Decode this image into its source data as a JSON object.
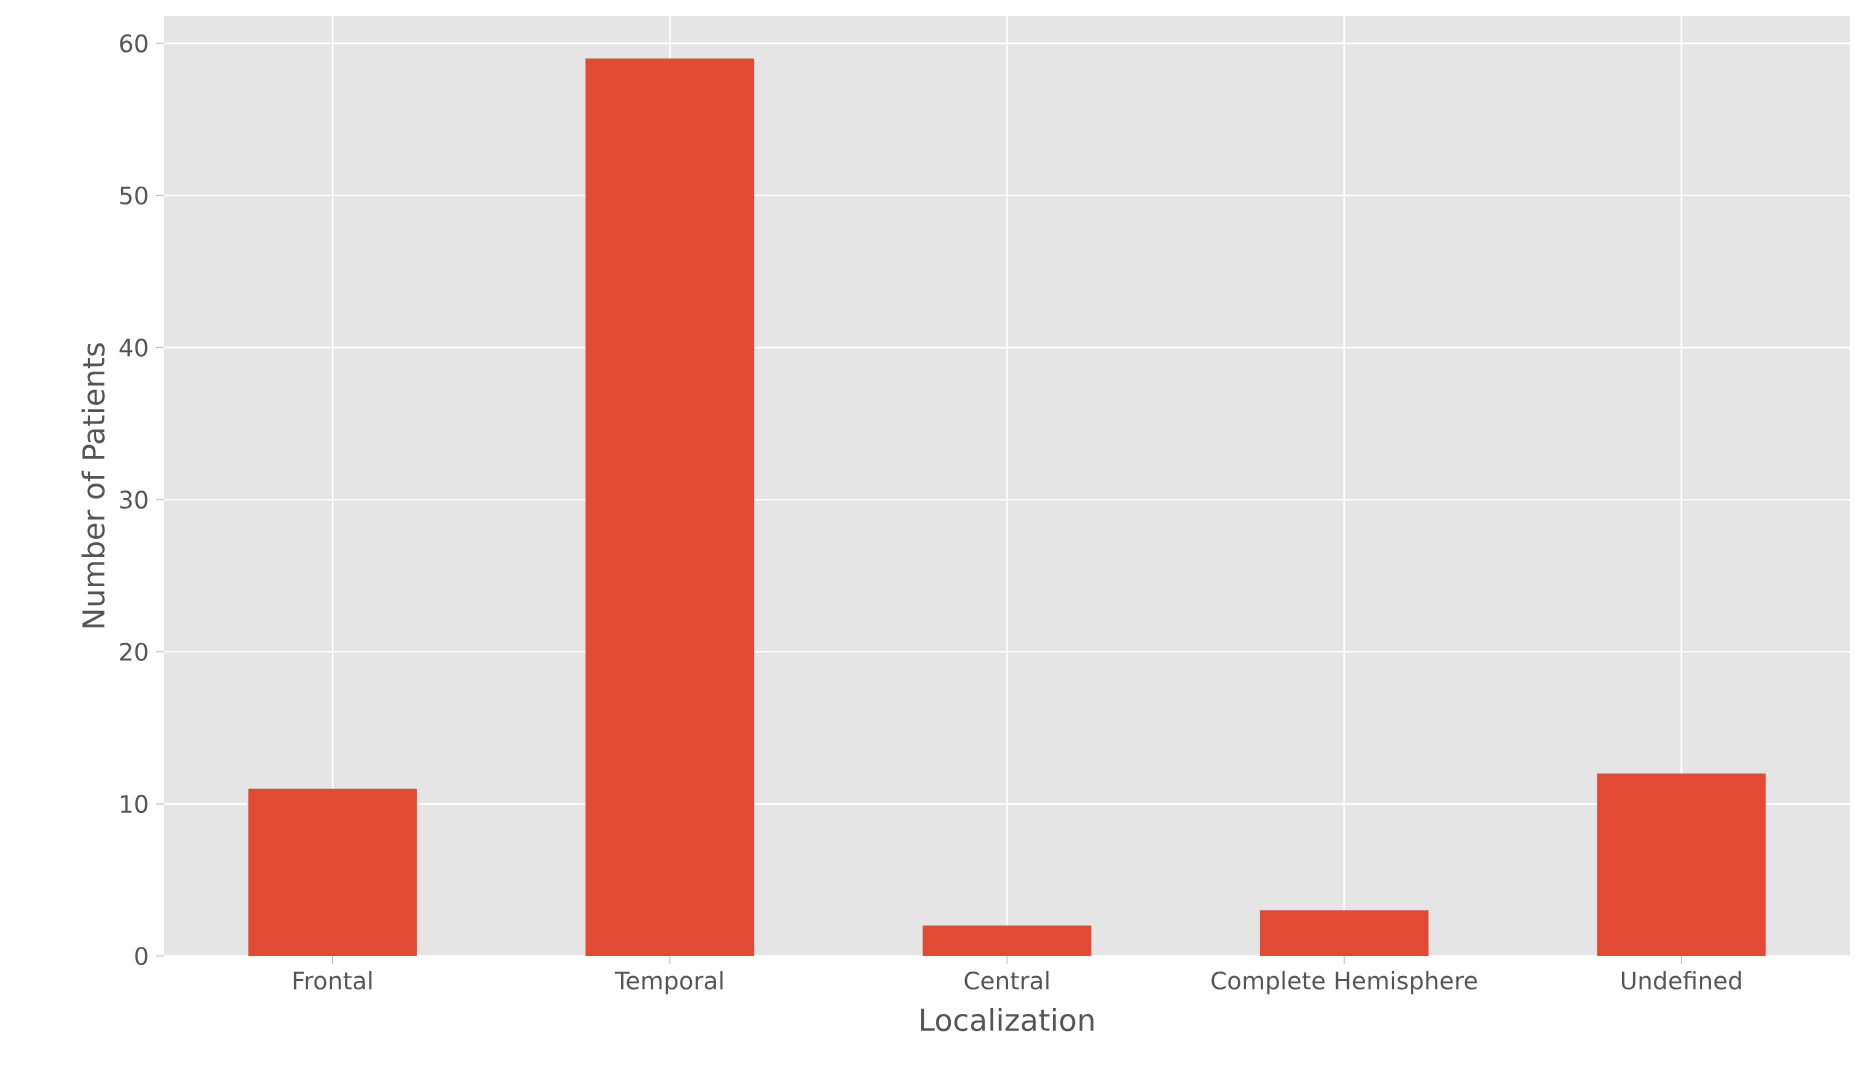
{
  "chart_data": {
    "type": "bar",
    "xlabel": "Localization",
    "ylabel": "Number of Patients",
    "categories": [
      "Frontal",
      "Temporal",
      "Central",
      "Complete Hemisphere",
      "Undefined"
    ],
    "values": [
      11,
      59,
      2,
      3,
      12
    ],
    "color": "#e24a33",
    "ylim": [
      0,
      61.8
    ],
    "yticks": [
      0,
      10,
      20,
      30,
      40,
      50,
      60
    ],
    "grid": true
  }
}
